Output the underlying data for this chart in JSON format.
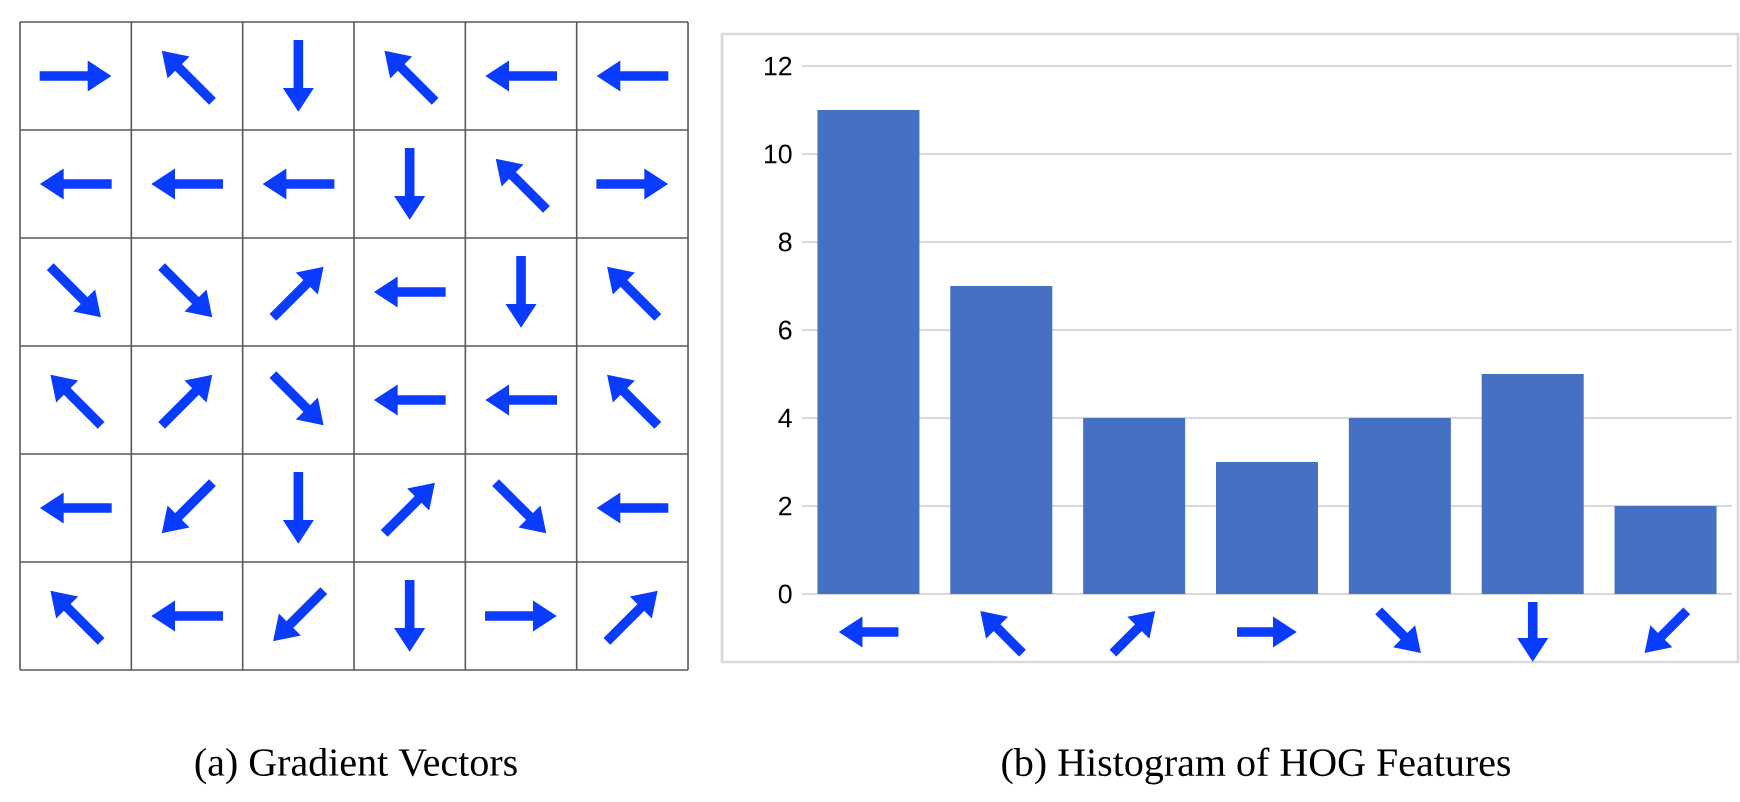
{
  "chart_data": {
    "type": "bar",
    "title": "(b) Histogram of HOG Features",
    "annotations": [
      "(a) Gradient Vectors"
    ],
    "categories": [
      null,
      null,
      null,
      null,
      null,
      null,
      null
    ],
    "values": [
      11,
      7,
      4,
      3,
      4,
      5,
      2
    ],
    "color": "#4670c4",
    "ylim": [
      0,
      12
    ],
    "yticks": [
      0,
      2,
      4,
      6,
      8,
      10,
      12
    ],
    "grid": "y"
  }
}
